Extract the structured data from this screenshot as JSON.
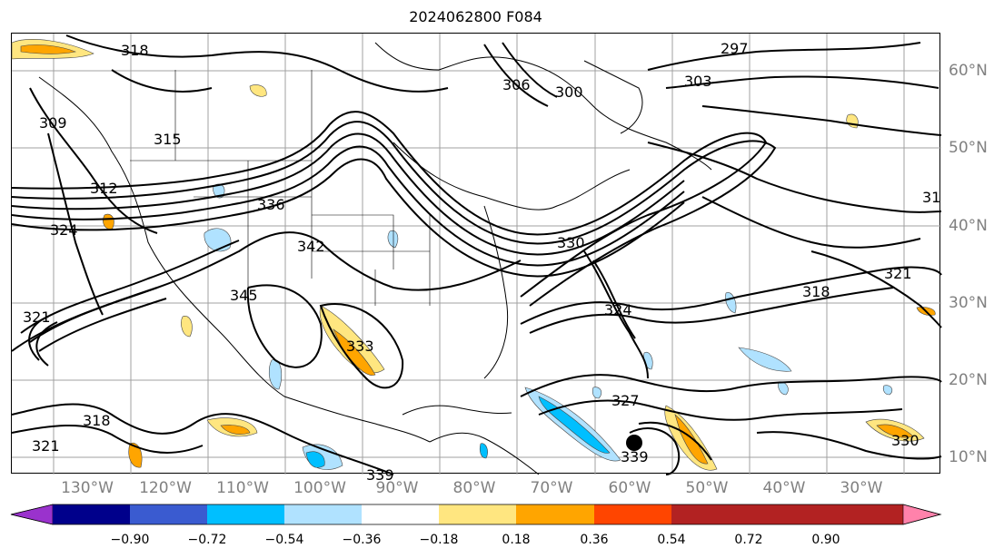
{
  "title": "2024062800 F084",
  "lat_labels": [
    "60°N",
    "50°N",
    "40°N",
    "30°N",
    "20°N",
    "10°N"
  ],
  "lon_labels": [
    "130°W",
    "120°W",
    "110°W",
    "100°W",
    "90°W",
    "80°W",
    "70°W",
    "60°W",
    "50°W",
    "40°W",
    "30°W"
  ],
  "contour_labels": [
    "318",
    "297",
    "306",
    "300",
    "303",
    "309",
    "315",
    "312",
    "324",
    "336",
    "342",
    "330",
    "321",
    "345",
    "333",
    "324",
    "318",
    "321",
    "327",
    "339",
    "318",
    "321",
    "330",
    "31",
    "339"
  ],
  "colorbar": {
    "ticks": [
      "−0.90",
      "−0.72",
      "−0.54",
      "−0.36",
      "−0.18",
      "0.18",
      "0.36",
      "0.54",
      "0.72",
      "0.90"
    ],
    "colors": [
      "#9a32cd",
      "#00008b",
      "#3a5bd0",
      "#00bfff",
      "#b0e2ff",
      "#ffffff",
      "#ffe680",
      "#ffa500",
      "#ff4500",
      "#b22222",
      "#ff82ab"
    ]
  }
}
